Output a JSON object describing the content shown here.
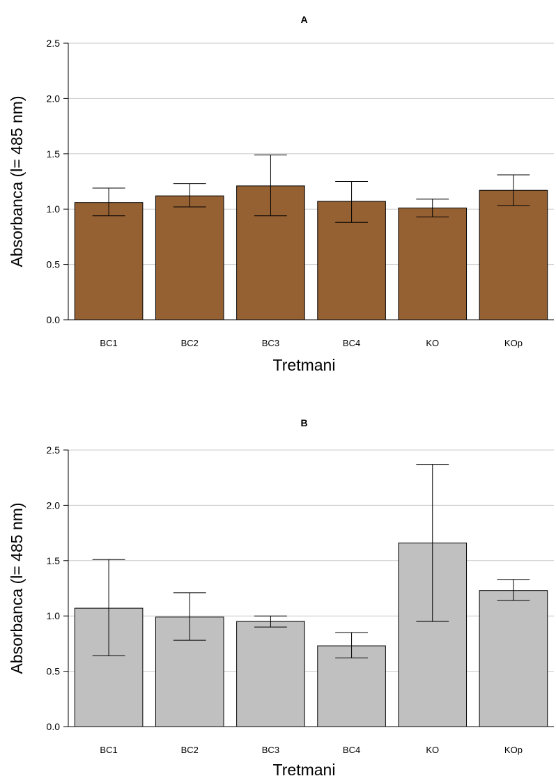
{
  "chart_data": [
    {
      "type": "bar",
      "title": "A",
      "xlabel": "Tretmani",
      "ylabel": "Absorbanca (l= 485 nm)",
      "categories": [
        "BC1",
        "BC2",
        "BC3",
        "BC4",
        "KO",
        "KOp"
      ],
      "values": [
        1.06,
        1.12,
        1.21,
        1.07,
        1.01,
        1.17
      ],
      "error_low": [
        0.94,
        1.02,
        0.94,
        0.88,
        0.93,
        1.03
      ],
      "error_high": [
        1.19,
        1.23,
        1.49,
        1.25,
        1.09,
        1.31
      ],
      "ylim": [
        0,
        2.5
      ],
      "yticks": [
        "0.0",
        "0.5",
        "1.0",
        "1.5",
        "2.0",
        "2.5"
      ],
      "grid": true,
      "bar_color": "#956133"
    },
    {
      "type": "bar",
      "title": "B",
      "xlabel": "Tretmani",
      "ylabel": "Absorbanca (l= 485 nm)",
      "categories": [
        "BC1",
        "BC2",
        "BC3",
        "BC4",
        "KO",
        "KOp"
      ],
      "values": [
        1.07,
        0.99,
        0.95,
        0.73,
        1.66,
        1.23
      ],
      "error_low": [
        0.64,
        0.78,
        0.9,
        0.62,
        0.95,
        1.14
      ],
      "error_high": [
        1.51,
        1.21,
        1.0,
        0.85,
        2.37,
        1.33
      ],
      "ylim": [
        0,
        2.5
      ],
      "yticks": [
        "0.0",
        "0.5",
        "1.0",
        "1.5",
        "2.0",
        "2.5"
      ],
      "grid": true,
      "bar_color": "#c0c0c0"
    }
  ]
}
